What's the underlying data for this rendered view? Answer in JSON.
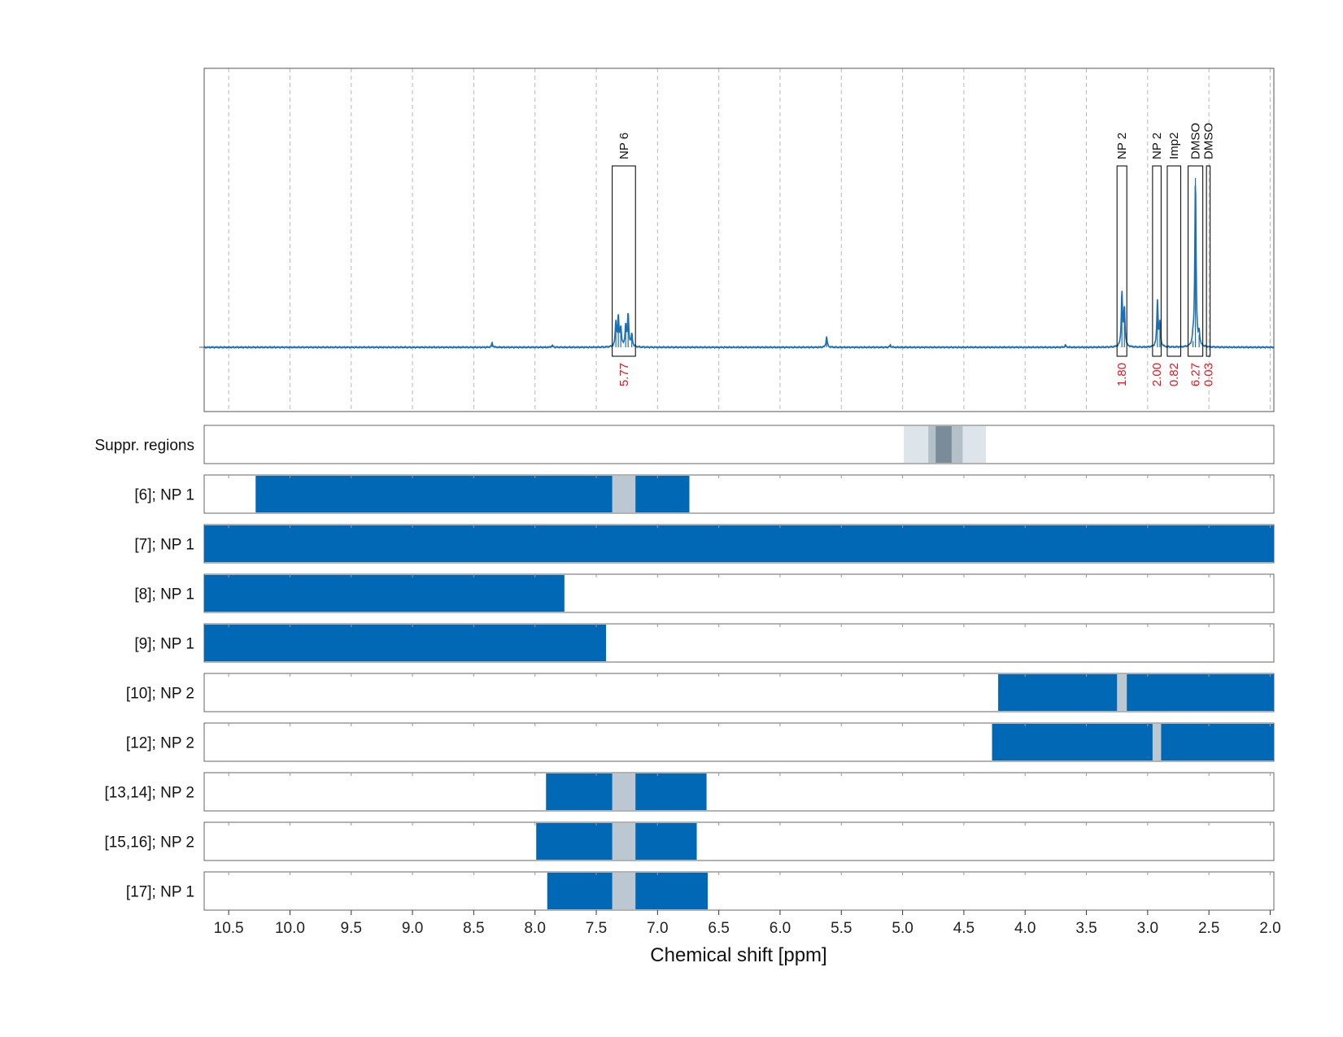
{
  "chart_data": {
    "type": "nmr-spectrum-with-region-bars",
    "xlabel": "Chemical shift [ppm]",
    "xlim": [
      10.7,
      1.97
    ],
    "x_reversed": true,
    "xticks": [
      10.5,
      10.0,
      9.5,
      9.0,
      8.5,
      8.0,
      7.5,
      7.0,
      6.5,
      6.0,
      5.5,
      5.0,
      4.5,
      4.0,
      3.5,
      3.0,
      2.5,
      2.0
    ],
    "xtick_labels": [
      "10.5",
      "10.0",
      "9.5",
      "9.0",
      "8.5",
      "8.0",
      "7.5",
      "7.0",
      "6.5",
      "6.0",
      "5.5",
      "5.0",
      "4.5",
      "4.0",
      "3.5",
      "3.0",
      "2.5",
      "2.0"
    ],
    "grid": "vertical dashed",
    "colors": {
      "spectrum": "#1a6fb5",
      "region_fill": "#0068b5",
      "overlap_fill": "#bcc8d1",
      "integral_text": "#e8141e",
      "suppr_light": "#dde5ea",
      "suppr_mid": "#b4c0c8",
      "suppr_dark": "#7a8c99"
    },
    "spectrum": {
      "baseline": 0,
      "peaks": [
        {
          "x": 8.35,
          "y": 0.02
        },
        {
          "x": 7.86,
          "y": 0.01
        },
        {
          "x": 7.34,
          "y": 0.12
        },
        {
          "x": 7.32,
          "y": 0.14
        },
        {
          "x": 7.3,
          "y": 0.09
        },
        {
          "x": 7.26,
          "y": 0.1
        },
        {
          "x": 7.24,
          "y": 0.16
        },
        {
          "x": 7.21,
          "y": 0.06
        },
        {
          "x": 5.62,
          "y": 0.05
        },
        {
          "x": 5.1,
          "y": 0.01
        },
        {
          "x": 3.67,
          "y": 0.01
        },
        {
          "x": 3.21,
          "y": 0.26
        },
        {
          "x": 3.19,
          "y": 0.18
        },
        {
          "x": 2.92,
          "y": 0.22
        },
        {
          "x": 2.9,
          "y": 0.11
        },
        {
          "x": 2.63,
          "y": 0.03
        },
        {
          "x": 2.61,
          "y": 0.8
        },
        {
          "x": 2.58,
          "y": 0.06
        }
      ]
    },
    "peak_boxes": [
      {
        "label": "NP 6",
        "x_start": 7.37,
        "x_end": 7.18,
        "integral": "5.77"
      },
      {
        "label": "NP 2",
        "x_start": 3.25,
        "x_end": 3.17,
        "integral": "1.80"
      },
      {
        "label": "NP 2",
        "x_start": 2.96,
        "x_end": 2.89,
        "integral": "2.00"
      },
      {
        "label": "Imp2",
        "x_start": 2.84,
        "x_end": 2.73,
        "integral": "0.82"
      },
      {
        "label": "DMSO",
        "x_start": 2.67,
        "x_end": 2.55,
        "integral": "6.27"
      },
      {
        "label": "DMSO",
        "x_start": 2.52,
        "x_end": 2.49,
        "integral": "0.03"
      }
    ],
    "suppression_row": {
      "label": "Suppr. regions",
      "bands": [
        {
          "x_start": 4.99,
          "x_end": 4.32,
          "level": "light"
        },
        {
          "x_start": 4.79,
          "x_end": 4.51,
          "level": "mid"
        },
        {
          "x_start": 4.73,
          "x_end": 4.6,
          "level": "dark"
        }
      ]
    },
    "region_rows": [
      {
        "label": "[6]; NP 1",
        "x_start": 10.28,
        "x_end": 6.74,
        "overlaps": [
          [
            7.37,
            7.18
          ]
        ]
      },
      {
        "label": "[7]; NP 1",
        "x_start": 10.7,
        "x_end": 1.97,
        "overlaps": []
      },
      {
        "label": "[8]; NP 1",
        "x_start": 10.7,
        "x_end": 7.76,
        "overlaps": []
      },
      {
        "label": "[9]; NP 1",
        "x_start": 10.7,
        "x_end": 7.42,
        "overlaps": []
      },
      {
        "label": "[10]; NP 2",
        "x_start": 4.22,
        "x_end": 1.97,
        "overlaps": [
          [
            3.25,
            3.17
          ]
        ]
      },
      {
        "label": "[12]; NP 2",
        "x_start": 4.27,
        "x_end": 1.97,
        "overlaps": [
          [
            2.96,
            2.89
          ]
        ]
      },
      {
        "label": "[13,14]; NP 2",
        "x_start": 7.91,
        "x_end": 6.6,
        "overlaps": [
          [
            7.37,
            7.18
          ]
        ]
      },
      {
        "label": "[15,16]; NP 2",
        "x_start": 7.99,
        "x_end": 6.68,
        "overlaps": [
          [
            7.37,
            7.18
          ]
        ]
      },
      {
        "label": "[17]; NP 1",
        "x_start": 7.9,
        "x_end": 6.59,
        "overlaps": [
          [
            7.37,
            7.18
          ]
        ]
      }
    ]
  }
}
